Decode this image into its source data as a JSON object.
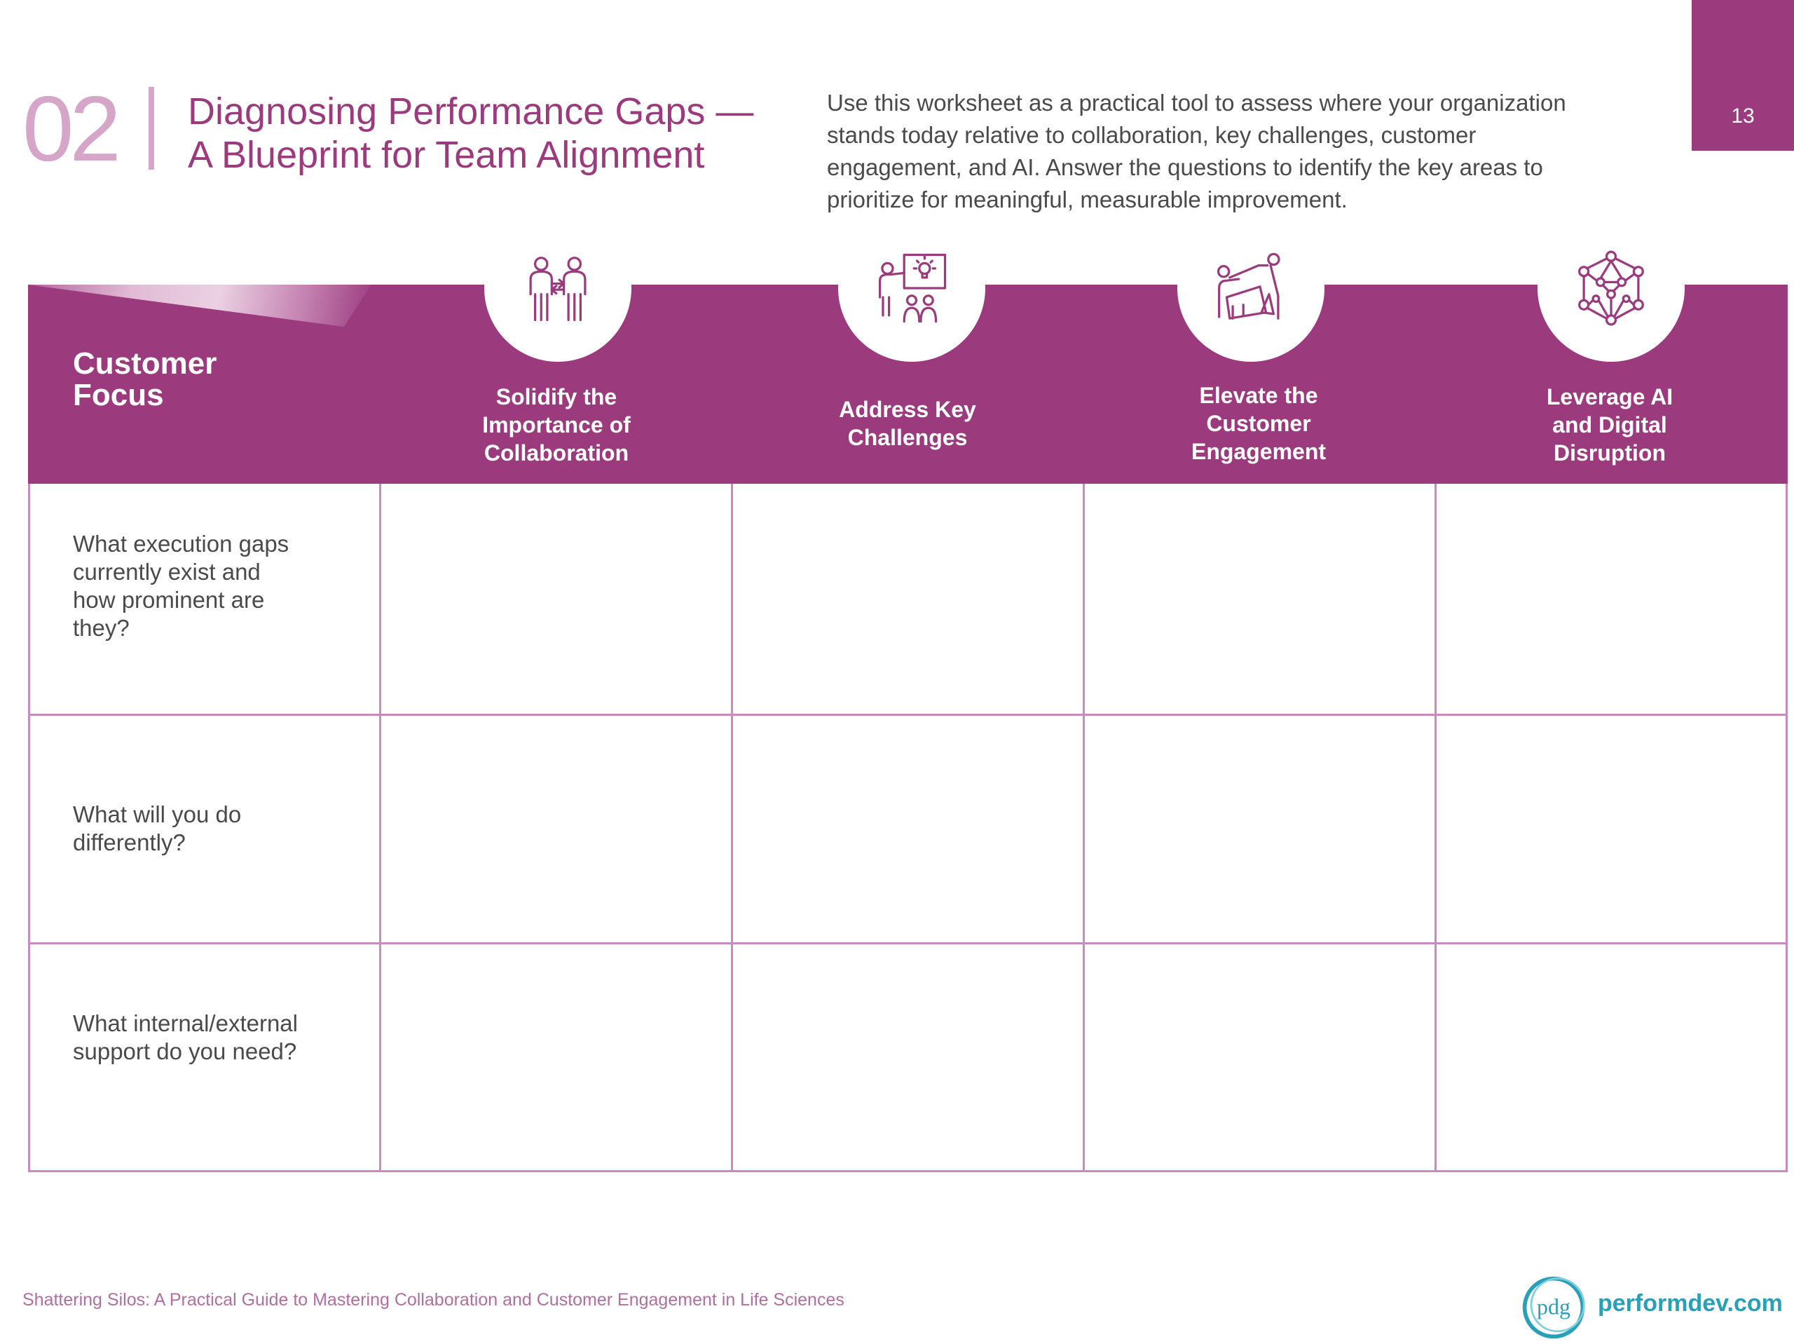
{
  "page_number": "13",
  "section": {
    "number": "02",
    "title_lines": [
      "Diagnosing Performance Gaps —",
      "A Blueprint for Team Alignment"
    ]
  },
  "intro_lines": [
    "Use this worksheet as a practical tool to assess where your organization",
    "stands today relative to collaboration, key challenges, customer",
    "engagement, and AI. Answer the questions to identify the key areas to",
    "prioritize for meaningful, measurable improvement."
  ],
  "band": {
    "label_lines": [
      "Customer",
      "Focus"
    ]
  },
  "columns": [
    {
      "lines": [
        "Solidify the",
        "Importance of",
        "Collaboration"
      ],
      "icon": "collaboration-people-icon"
    },
    {
      "lines": [
        "Address Key",
        "Challenges"
      ],
      "icon": "presentation-idea-icon"
    },
    {
      "lines": [
        "Elevate the",
        "Customer",
        "Engagement"
      ],
      "icon": "handshake-desk-icon"
    },
    {
      "lines": [
        "Leverage AI",
        "and Digital",
        "Disruption"
      ],
      "icon": "ai-network-icon"
    }
  ],
  "rows": [
    {
      "lines": [
        "What execution gaps",
        "currently exist and",
        "how prominent are",
        "they?"
      ]
    },
    {
      "lines": [
        "What will you do",
        "differently?"
      ]
    },
    {
      "lines": [
        "What internal/external",
        "support do you need?"
      ]
    }
  ],
  "footer": {
    "text": "Shattering Silos: A Practical Guide to Mastering Collaboration and Customer Engagement in Life Sciences",
    "logo_text": "pdg",
    "site": "performdev.com"
  },
  "colors": {
    "brand_purple": "#9b3b7e",
    "light_purple": "#d6a6c9",
    "grid": "#c98bbd",
    "teal": "#2aa0b8"
  }
}
